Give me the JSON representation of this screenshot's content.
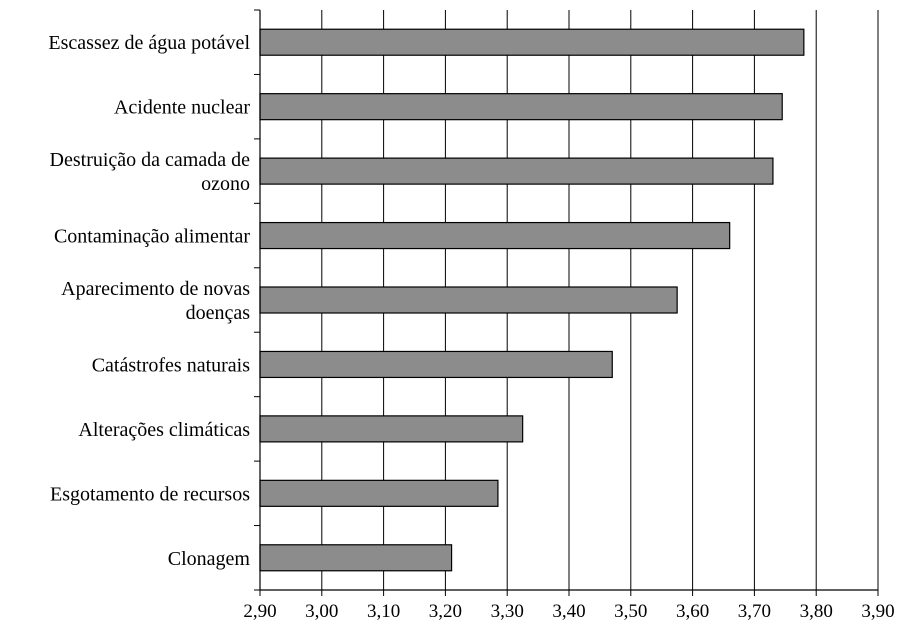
{
  "chart_data": {
    "type": "bar",
    "orientation": "horizontal",
    "title": "",
    "xlabel": "",
    "ylabel": "",
    "categories": [
      [
        "Escassez de água potável"
      ],
      [
        "Acidente nuclear"
      ],
      [
        "Destruição da camada de",
        "ozono"
      ],
      [
        "Contaminação alimentar"
      ],
      [
        "Aparecimento de novas",
        "doenças"
      ],
      [
        "Catástrofes naturais"
      ],
      [
        "Alterações climáticas"
      ],
      [
        "Esgotamento de recursos"
      ],
      [
        "Clonagem"
      ]
    ],
    "values": [
      3.78,
      3.745,
      3.73,
      3.66,
      3.575,
      3.47,
      3.325,
      3.285,
      3.21
    ],
    "xlim": [
      2.9,
      3.9
    ],
    "xticks": [
      2.9,
      3.0,
      3.1,
      3.2,
      3.3,
      3.4,
      3.5,
      3.6,
      3.7,
      3.8,
      3.9
    ],
    "xtick_labels": [
      "2,90",
      "3,00",
      "3,10",
      "3,20",
      "3,30",
      "3,40",
      "3,50",
      "3,60",
      "3,70",
      "3,80",
      "3,90"
    ],
    "grid": "vertical",
    "legend": "none",
    "bar_color": "#8c8c8c"
  }
}
